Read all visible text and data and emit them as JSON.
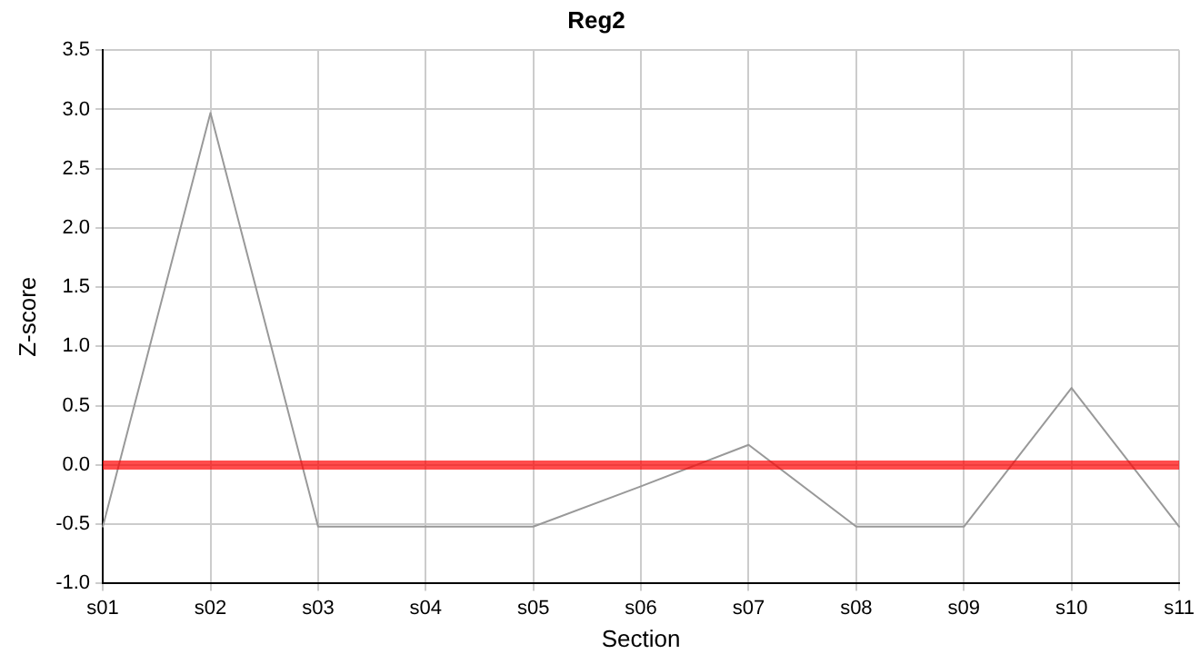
{
  "chart_data": {
    "type": "line",
    "title": "Reg2",
    "xlabel": "Section",
    "ylabel": "Z-score",
    "categories": [
      "s01",
      "s02",
      "s03",
      "s04",
      "s05",
      "s06",
      "s07",
      "s08",
      "s09",
      "s10",
      "s11"
    ],
    "series": [
      {
        "color": "#999999",
        "values": [
          -0.52,
          2.97,
          -0.52,
          -0.52,
          -0.52,
          -0.18,
          0.17,
          -0.52,
          -0.52,
          0.65,
          -0.52
        ]
      }
    ],
    "ylim": [
      -1,
      3.5
    ],
    "yticks": [
      {
        "value": -1,
        "label": "-1.0"
      },
      {
        "value": -0.5,
        "label": "-0.5"
      },
      {
        "value": 0,
        "label": "0.0"
      },
      {
        "value": 0.5,
        "label": "0.5"
      },
      {
        "value": 1,
        "label": "1.0"
      },
      {
        "value": 1.5,
        "label": "1.5"
      },
      {
        "value": 2,
        "label": "2.0"
      },
      {
        "value": 2.5,
        "label": "2.5"
      },
      {
        "value": 3,
        "label": "3.0"
      },
      {
        "value": 3.5,
        "label": "3.5"
      }
    ],
    "ref_lines": [
      {
        "axis": "y",
        "value": 0,
        "color": "#ff0000"
      }
    ],
    "grid": true,
    "legend": false,
    "marker": "none",
    "line_style": "solid"
  }
}
